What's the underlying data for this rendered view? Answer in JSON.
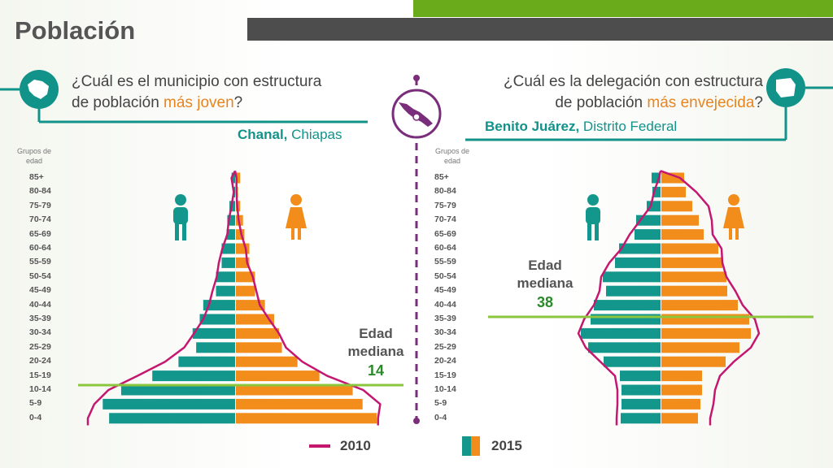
{
  "title": "Población",
  "left": {
    "question_pre": "¿Cuál es el municipio con estructura",
    "question_mid": "de población ",
    "question_hl": "más joven",
    "question_post": "?",
    "answer_bold": "Chanal,",
    "answer_rest": " Chiapas",
    "groups_label": "Grupos de edad",
    "median_title": "Edad mediana",
    "median_value": "14"
  },
  "right": {
    "question_pre": "¿Cuál es la delegación con estructura",
    "question_mid": "de población ",
    "question_hl": "más envejecida",
    "question_post": "?",
    "answer_bold": "Benito Juárez,",
    "answer_rest": " Distrito Federal",
    "groups_label": "Grupos de edad",
    "median_title": "Edad mediana",
    "median_value": "38"
  },
  "legend": {
    "line_label": "2010",
    "bar_label": "2015"
  },
  "colors": {
    "male": "#13968c",
    "female": "#f28c1b",
    "line2010": "#c4176f",
    "median_line": "#8cc63f",
    "teal_text": "#12938a",
    "orange_text": "#e8841e",
    "icon_gray": "#666666"
  },
  "icons": [
    "chiapas-map-icon",
    "mexico-map-icon",
    "df-map-icon",
    "male-figure-icon",
    "female-figure-icon"
  ],
  "chart_data": [
    {
      "type": "bar",
      "subtype": "population-pyramid",
      "region": "Chanal, Chiapas",
      "categories": [
        "85+",
        "80-84",
        "75-79",
        "70-74",
        "65-69",
        "60-64",
        "55-59",
        "50-54",
        "45-49",
        "40-44",
        "35-39",
        "30-34",
        "25-29",
        "20-24",
        "15-19",
        "10-14",
        "5-9",
        "0-4"
      ],
      "series": [
        {
          "name": "2015",
          "side": "male",
          "values": [
            0.5,
            0.3,
            0.8,
            1.1,
            1.2,
            1.9,
            1.9,
            2.7,
            2.7,
            4.5,
            5.0,
            6.0,
            5.5,
            8.0,
            11.7,
            16.1,
            18.7,
            17.8
          ]
        },
        {
          "name": "2015",
          "side": "female",
          "values": [
            0.6,
            0.3,
            0.6,
            1.0,
            1.2,
            1.9,
            1.9,
            2.7,
            2.7,
            4.1,
            5.4,
            6.1,
            6.5,
            8.7,
            11.8,
            16.5,
            17.9,
            19.9
          ]
        },
        {
          "name": "2010",
          "side": "male",
          "values": [
            0.5,
            0.2,
            0.5,
            0.9,
            1.1,
            1.8,
            2.3,
            2.6,
            3.2,
            3.7,
            4.5,
            5.8,
            7.2,
            9.9,
            13.8,
            17.9,
            19.9,
            20.8
          ]
        },
        {
          "name": "2010",
          "side": "female",
          "values": [
            0.2,
            0.2,
            0.3,
            0.5,
            0.9,
            1.5,
            1.7,
            2.5,
            3.0,
            3.5,
            4.8,
            6.2,
            7.2,
            9.5,
            13.0,
            18.1,
            20.5,
            20.2
          ]
        }
      ],
      "median_age": 14
    },
    {
      "type": "bar",
      "subtype": "population-pyramid",
      "region": "Benito Juárez, Distrito Federal",
      "categories": [
        "85+",
        "80-84",
        "75-79",
        "70-74",
        "65-69",
        "60-64",
        "55-59",
        "50-54",
        "45-49",
        "40-44",
        "35-39",
        "30-34",
        "25-29",
        "20-24",
        "15-19",
        "10-14",
        "5-9",
        "0-4"
      ],
      "series": [
        {
          "name": "2015",
          "side": "male",
          "values": [
            1.1,
            1.0,
            1.7,
            3.0,
            3.2,
            5.1,
            5.6,
            7.1,
            6.7,
            8.2,
            8.6,
            9.8,
            8.9,
            7.0,
            5.0,
            4.8,
            4.8,
            4.9
          ]
        },
        {
          "name": "2015",
          "side": "female",
          "values": [
            2.8,
            3.0,
            3.8,
            4.6,
            5.2,
            7.0,
            7.5,
            8.0,
            8.1,
            9.4,
            10.8,
            11.0,
            9.6,
            7.9,
            5.0,
            5.0,
            4.8,
            4.5
          ]
        },
        {
          "name": "2010",
          "side": "male",
          "values": [
            0.2,
            0.8,
            1.2,
            2.5,
            3.8,
            4.8,
            6.3,
            7.3,
            7.5,
            8.2,
            9.4,
            10.1,
            9.2,
            7.4,
            5.6,
            5.3,
            5.3,
            5.4
          ]
        },
        {
          "name": "2010",
          "side": "female",
          "values": [
            2.4,
            4.4,
            5.9,
            6.3,
            6.4,
            7.5,
            7.6,
            8.1,
            9.2,
            10.1,
            11.6,
            12.1,
            11.1,
            9.0,
            7.3,
            6.7,
            6.5,
            6.1
          ]
        }
      ],
      "median_age": 38
    }
  ]
}
